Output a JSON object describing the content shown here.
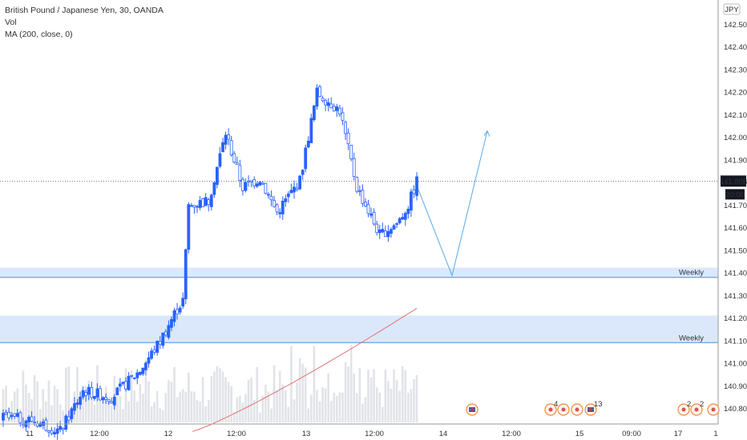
{
  "legend": {
    "title": "British Pound / Japanese Yen, 30, OANDA",
    "vol": "Vol",
    "ma": "MA (200, close, 0)"
  },
  "currency_badge": "JPY",
  "price_tag": {
    "price": "141.808",
    "time": "20:00"
  },
  "zones": [
    {
      "label": "Weekly",
      "top": 141.425,
      "bottom": 141.382
    },
    {
      "label": "Weekly",
      "top": 141.213,
      "bottom": 141.093
    }
  ],
  "event_markers": [
    {
      "type": "flag-uk",
      "count": ""
    },
    {
      "type": "dot",
      "count": "4"
    },
    {
      "type": "dot",
      "count": ""
    },
    {
      "type": "dot",
      "count": ""
    },
    {
      "type": "flag-uk",
      "count": "13"
    },
    {
      "type": "dot",
      "count": "2"
    },
    {
      "type": "dot",
      "count": "2"
    },
    {
      "type": "dot",
      "count": ""
    }
  ],
  "colors": {
    "up": "#2962ff",
    "down": "#2962ff",
    "ma": "#e57373",
    "zone_fill": "#dbe8fb",
    "zone_line": "#4a8ed8",
    "projection": "#5aa9e6",
    "volume": "#e1e3e8",
    "badge_bg": "#131722"
  },
  "chart_data": {
    "type": "candlestick",
    "title": "British Pound / Japanese Yen, 30, OANDA",
    "y_axis": {
      "ticks": [
        "140.800",
        "140.900",
        "141.000",
        "141.100",
        "141.200",
        "141.300",
        "141.400",
        "141.500",
        "141.600",
        "141.700",
        "141.800",
        "141.900",
        "142.000",
        "142.100",
        "142.200",
        "142.300",
        "142.400",
        "142.500"
      ],
      "range": [
        140.74,
        142.56
      ]
    },
    "x_axis": {
      "ticks": [
        "11",
        "12:00",
        "12",
        "12:00",
        "13",
        "12:00",
        "14",
        "12:00",
        "15",
        "09:00",
        "17",
        "1"
      ]
    },
    "last_price": 141.808,
    "moving_average": {
      "name": "MA (200, close, 0)",
      "start": 140.7,
      "end": 141.245
    },
    "projection_path": [
      141.77,
      141.39,
      142.03
    ],
    "anchors": [
      {
        "i": 0,
        "c": 140.76
      },
      {
        "i": 10,
        "c": 140.75
      },
      {
        "i": 20,
        "c": 140.7
      },
      {
        "i": 28,
        "c": 140.88
      },
      {
        "i": 38,
        "c": 140.85
      },
      {
        "i": 48,
        "c": 140.97
      },
      {
        "i": 55,
        "c": 141.1
      },
      {
        "i": 60,
        "c": 141.22
      },
      {
        "i": 63,
        "c": 141.28
      },
      {
        "i": 65,
        "c": 141.7
      },
      {
        "i": 72,
        "c": 141.72
      },
      {
        "i": 78,
        "c": 142.02
      },
      {
        "i": 84,
        "c": 141.78
      },
      {
        "i": 90,
        "c": 141.82
      },
      {
        "i": 96,
        "c": 141.67
      },
      {
        "i": 104,
        "c": 141.81
      },
      {
        "i": 110,
        "c": 142.2
      },
      {
        "i": 118,
        "c": 142.12
      },
      {
        "i": 124,
        "c": 141.78
      },
      {
        "i": 132,
        "c": 141.57
      },
      {
        "i": 138,
        "c": 141.62
      },
      {
        "i": 142,
        "c": 141.7
      },
      {
        "i": 145,
        "c": 141.808
      }
    ]
  }
}
